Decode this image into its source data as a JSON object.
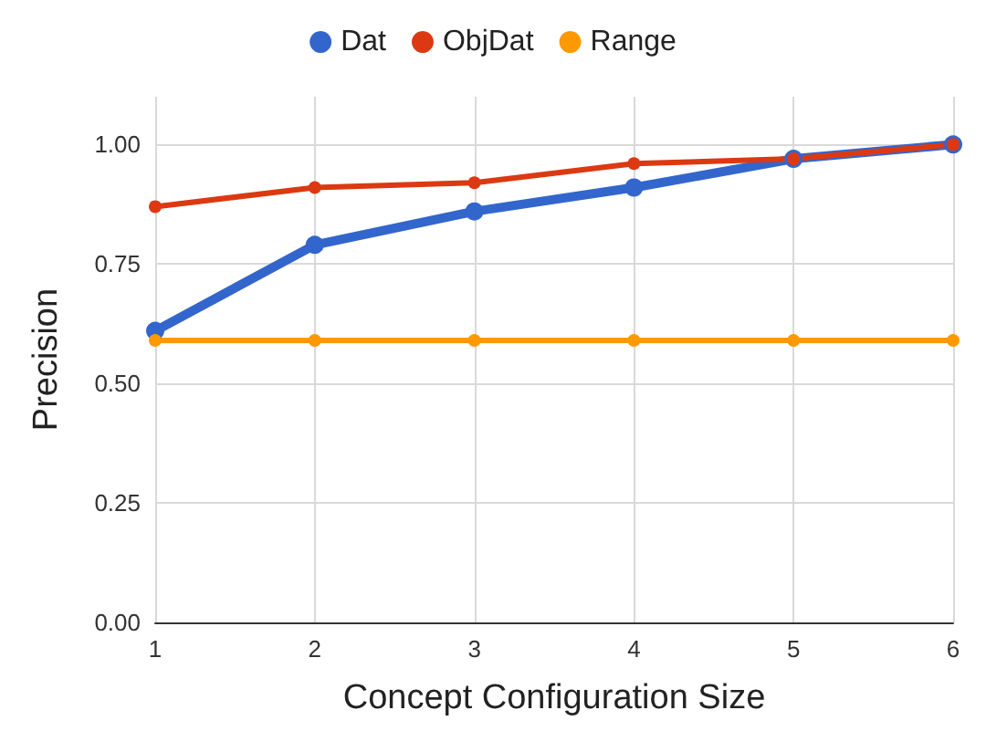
{
  "chart_data": {
    "type": "line",
    "xlabel": "Concept Configuration Size",
    "ylabel": "Precision",
    "x": [
      1,
      2,
      3,
      4,
      5,
      6
    ],
    "series": [
      {
        "name": "Dat",
        "color": "#3366cc",
        "values": [
          0.61,
          0.79,
          0.86,
          0.91,
          0.97,
          1.0
        ]
      },
      {
        "name": "ObjDat",
        "color": "#dc3912",
        "values": [
          0.87,
          0.91,
          0.92,
          0.96,
          0.97,
          1.0
        ]
      },
      {
        "name": "Range",
        "color": "#ff9900",
        "values": [
          0.59,
          0.59,
          0.59,
          0.59,
          0.59,
          0.59
        ]
      }
    ],
    "xlim": [
      1,
      6
    ],
    "xticks": [
      1,
      2,
      3,
      4,
      5,
      6
    ],
    "ylim": [
      0,
      1.1
    ],
    "yticks": [
      {
        "value": 0,
        "label": "0.00"
      },
      {
        "value": 0.25,
        "label": "0.25"
      },
      {
        "value": 0.5,
        "label": "0.50"
      },
      {
        "value": 0.75,
        "label": "0.75"
      },
      {
        "value": 1,
        "label": "1.00"
      }
    ],
    "grid": true,
    "legend": "top",
    "marker": "circle",
    "line_style": "solid"
  }
}
